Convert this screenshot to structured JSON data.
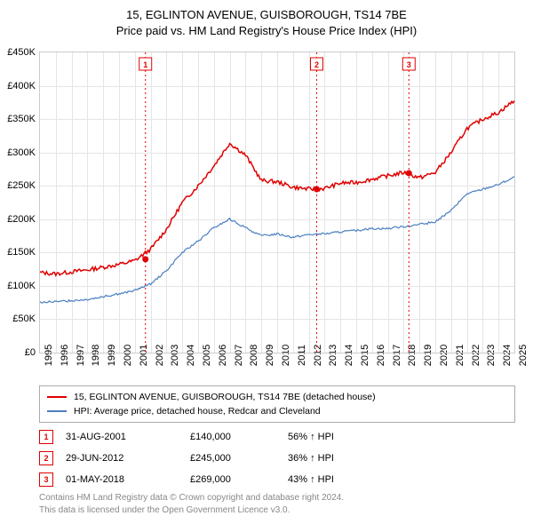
{
  "title_line1": "15, EGLINTON AVENUE, GUISBOROUGH, TS14 7BE",
  "title_line2": "Price paid vs. HM Land Registry's House Price Index (HPI)",
  "chart": {
    "type": "line",
    "background_color": "#ffffff",
    "grid_color": "#e5e5e5",
    "border_color": "#cccccc",
    "x_start_year": 1995,
    "x_end_year": 2025,
    "x_tick_years": [
      1995,
      1996,
      1997,
      1998,
      1999,
      2000,
      2001,
      2002,
      2003,
      2004,
      2005,
      2006,
      2007,
      2008,
      2009,
      2010,
      2011,
      2012,
      2013,
      2014,
      2015,
      2016,
      2017,
      2018,
      2019,
      2020,
      2021,
      2022,
      2023,
      2024,
      2025
    ],
    "ylim": [
      0,
      450
    ],
    "y_ticks": [
      0,
      50,
      100,
      150,
      200,
      250,
      300,
      350,
      400,
      450
    ],
    "y_tick_labels": [
      "£0",
      "£50K",
      "£100K",
      "£150K",
      "£200K",
      "£250K",
      "£300K",
      "£350K",
      "£400K",
      "£450K"
    ],
    "axis_fontsize": 11,
    "series": [
      {
        "name": "property",
        "label": "15, EGLINTON AVENUE, GUISBOROUGH, TS14 7BE (detached house)",
        "color": "#e00000",
        "line_width": 1.5,
        "values_per_year": {
          "1995": 120,
          "1996": 118,
          "1997": 121,
          "1998": 124,
          "1999": 128,
          "2000": 132,
          "2001": 138,
          "2002": 155,
          "2003": 185,
          "2004": 225,
          "2005": 250,
          "2006": 280,
          "2007": 314,
          "2008": 296,
          "2009": 258,
          "2010": 256,
          "2011": 248,
          "2012": 245,
          "2013": 246,
          "2014": 254,
          "2015": 255,
          "2016": 260,
          "2017": 265,
          "2018": 270,
          "2019": 262,
          "2020": 270,
          "2021": 300,
          "2022": 336,
          "2023": 350,
          "2024": 360,
          "2025": 378
        }
      },
      {
        "name": "hpi",
        "label": "HPI: Average price, detached house, Redcar and Cleveland",
        "color": "#4a7fc0",
        "line_width": 1.2,
        "values_per_year": {
          "1995": 76,
          "1996": 76,
          "1997": 78,
          "1998": 80,
          "1999": 84,
          "2000": 88,
          "2001": 93,
          "2002": 103,
          "2003": 123,
          "2004": 150,
          "2005": 167,
          "2006": 187,
          "2007": 200,
          "2008": 187,
          "2009": 175,
          "2010": 178,
          "2011": 173,
          "2012": 177,
          "2013": 178,
          "2014": 181,
          "2015": 183,
          "2016": 186,
          "2017": 186,
          "2018": 189,
          "2019": 192,
          "2020": 196,
          "2021": 213,
          "2022": 238,
          "2023": 245,
          "2024": 252,
          "2025": 263
        }
      }
    ],
    "sale_markers": [
      {
        "n": "1",
        "year": 2001.67,
        "value": 140,
        "color": "#e00000"
      },
      {
        "n": "2",
        "year": 2012.5,
        "value": 245,
        "color": "#e00000"
      },
      {
        "n": "3",
        "year": 2018.33,
        "value": 269,
        "color": "#e00000"
      }
    ]
  },
  "legend": {
    "items": [
      {
        "color": "#e00000",
        "label_path": "chart.series.0.label"
      },
      {
        "color": "#4a7fc0",
        "label_path": "chart.series.1.label"
      }
    ]
  },
  "sales": [
    {
      "n": "1",
      "date": "31-AUG-2001",
      "price": "£140,000",
      "pct": "56% ↑ HPI",
      "color": "#e00000"
    },
    {
      "n": "2",
      "date": "29-JUN-2012",
      "price": "£245,000",
      "pct": "36% ↑ HPI",
      "color": "#e00000"
    },
    {
      "n": "3",
      "date": "01-MAY-2018",
      "price": "£269,000",
      "pct": "43% ↑ HPI",
      "color": "#e00000"
    }
  ],
  "attribution_line1": "Contains HM Land Registry data © Crown copyright and database right 2024.",
  "attribution_line2": "This data is licensed under the Open Government Licence v3.0."
}
